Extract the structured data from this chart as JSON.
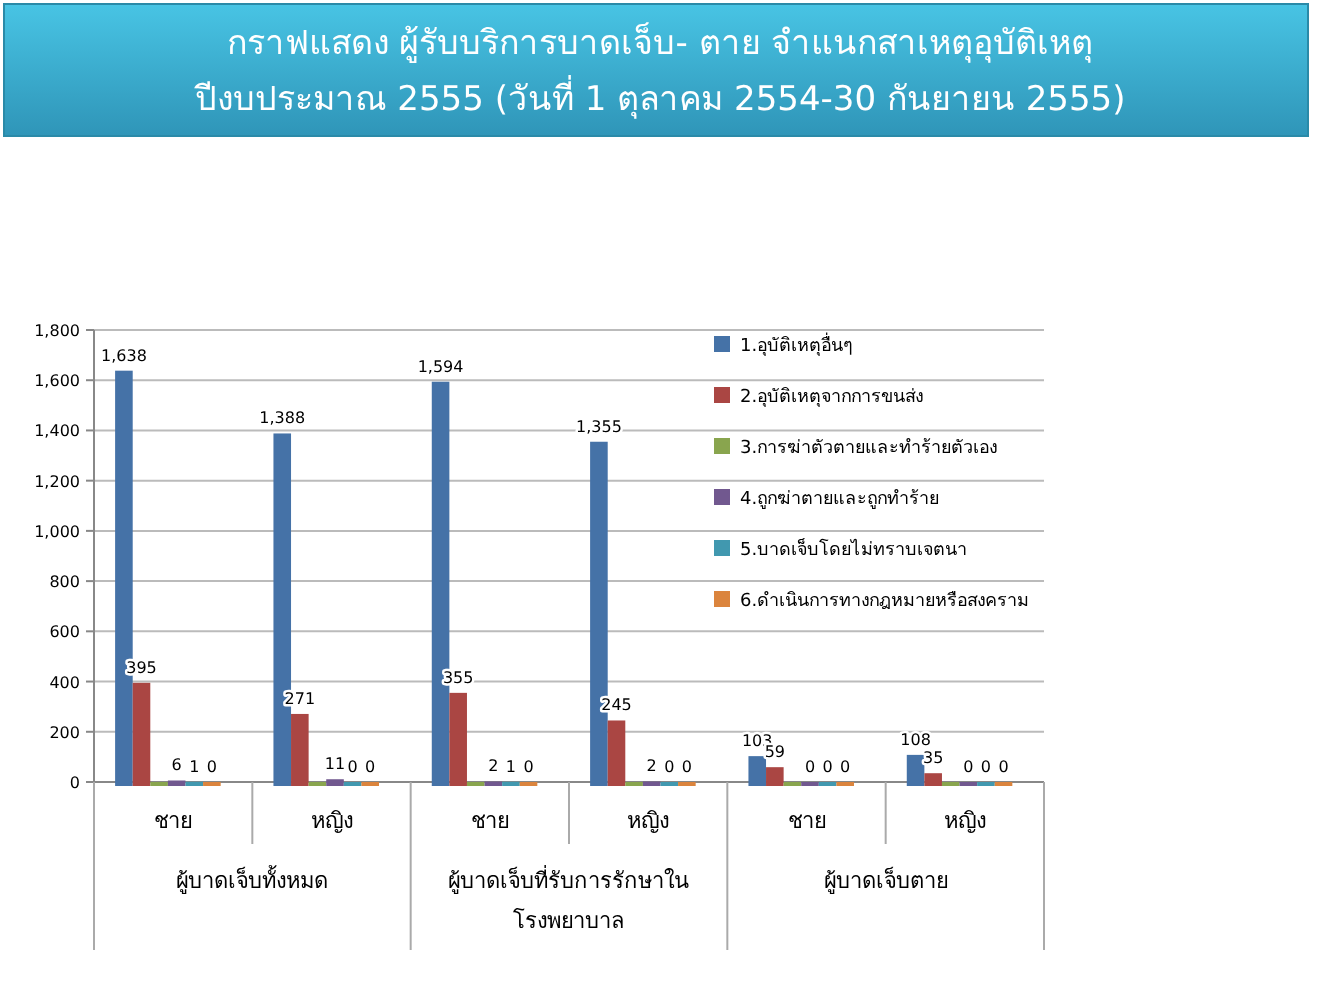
{
  "chart_data": {
    "type": "bar",
    "title": "กราฟแสดง ผู้รับบริการบาดเจ็บ- ตาย จำแนกสาเหตุอุบัติเหตุ",
    "subtitle": "ปีงบประมาณ 2555 (วันที่ 1 ตุลาคม 2554-30 กันยายน 2555)",
    "categories": [
      "ชาย",
      "หญิง",
      "ชาย",
      "หญิง",
      "ชาย",
      "หญิง"
    ],
    "annotations": [
      "ผู้บาดเจ็บทั้งหมด",
      "ผู้บาดเจ็บที่รับการรักษาใน โรงพยาบาล",
      "ผู้บาดเจ็บตาย"
    ],
    "series": [
      {
        "name": "1.อุบัติเหตุอื่นๆ",
        "color": "#4572a7",
        "values": [
          1638,
          1388,
          1594,
          1355,
          103,
          108
        ],
        "value_labels": [
          "1,638",
          "1,388",
          "1,594",
          "1,355",
          "103",
          "108"
        ]
      },
      {
        "name": "2.อุบัติเหตุจากการขนส่ง",
        "color": "#aa4643",
        "values": [
          395,
          271,
          355,
          245,
          59,
          35
        ],
        "value_labels": [
          "395",
          "271",
          "355",
          "245",
          "59",
          "35"
        ]
      },
      {
        "name": "3.การฆ่าตัวตายและทำร้ายตัวเอง",
        "color": "#89a54e",
        "values": [
          0,
          0,
          0,
          0,
          0,
          0
        ],
        "value_labels": [
          null,
          null,
          null,
          null,
          null,
          null
        ]
      },
      {
        "name": "4.ถูกฆ่าตายและถูกทำร้าย",
        "color": "#71588f",
        "values": [
          6,
          11,
          2,
          2,
          0,
          0
        ],
        "value_labels": [
          "6",
          "11",
          "2",
          "2",
          "0",
          "0"
        ]
      },
      {
        "name": "5.บาดเจ็บโดยไม่ทราบเจตนา",
        "color": "#4198af",
        "values": [
          1,
          0,
          1,
          0,
          0,
          0
        ],
        "value_labels": [
          "1",
          "0",
          "1",
          "0",
          "0",
          "0"
        ]
      },
      {
        "name": "6.ดำเนินการทางกฎหมายหรือสงคราม",
        "color": "#db843d",
        "values": [
          0,
          0,
          0,
          0,
          0,
          0
        ],
        "value_labels": [
          "0",
          "0",
          "0",
          "0",
          "0",
          "0"
        ]
      }
    ],
    "ylim": [
      0,
      1800
    ],
    "yticks": [
      {
        "value": 0,
        "label": "0"
      },
      {
        "value": 200,
        "label": "200"
      },
      {
        "value": 400,
        "label": "400"
      },
      {
        "value": 600,
        "label": "600"
      },
      {
        "value": 800,
        "label": "800"
      },
      {
        "value": 1000,
        "label": "1,000"
      },
      {
        "value": 1200,
        "label": "1,200"
      },
      {
        "value": 1400,
        "label": "1,400"
      },
      {
        "value": 1600,
        "label": "1,600"
      },
      {
        "value": 1800,
        "label": "1,800"
      }
    ],
    "grid": "y",
    "legend": "top right"
  }
}
